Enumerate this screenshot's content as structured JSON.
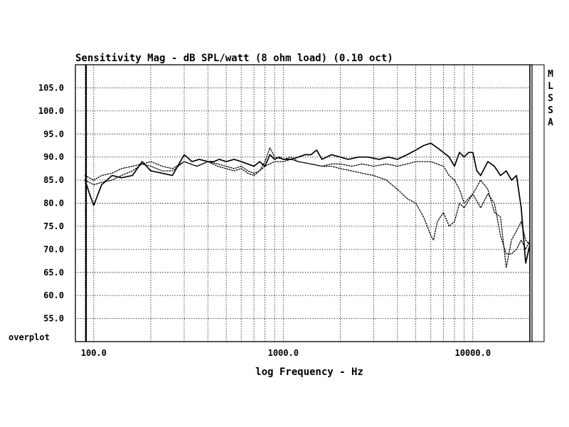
{
  "chart_data": {
    "type": "line",
    "title": "Sensitivity Mag - dB SPL/watt (8 ohm load) (0.10 oct)",
    "xlabel": "log Frequency - Hz",
    "ylabel": "",
    "xscale": "log",
    "xlim": [
      80,
      20000
    ],
    "ylim": [
      50,
      110
    ],
    "x_ticks": [
      100,
      1000,
      10000
    ],
    "x_tick_labels": [
      "100.0",
      "1000.0",
      "10000.0"
    ],
    "y_ticks": [
      55,
      60,
      65,
      70,
      75,
      80,
      85,
      90,
      95,
      100,
      105
    ],
    "y_tick_labels": [
      "55.0",
      "60.0",
      "65.0",
      "70.0",
      "75.0",
      "80.0",
      "85.0",
      "90.0",
      "95.0",
      "100.0",
      "105.0"
    ],
    "grid": true,
    "left_label": "overplot",
    "side_letters": [
      "M",
      "L",
      "S",
      "S",
      "A"
    ],
    "series": [
      {
        "style": "solid",
        "x": [
          90,
          95,
          100,
          110,
          125,
          140,
          160,
          180,
          200,
          230,
          260,
          300,
          330,
          360,
          400,
          430,
          460,
          500,
          550,
          600,
          650,
          700,
          750,
          800,
          850,
          900,
          950,
          1000,
          1100,
          1200,
          1300,
          1400,
          1500,
          1600,
          1800,
          2000,
          2200,
          2500,
          2800,
          3200,
          3600,
          4000,
          4500,
          5000,
          5500,
          6000,
          6500,
          7000,
          7500,
          8000,
          8500,
          9000,
          9500,
          10000,
          10500,
          11000,
          12000,
          13000,
          14000,
          15000,
          16000,
          17000,
          18000,
          19000,
          20000
        ],
        "y": [
          85,
          82,
          79.5,
          84,
          86,
          85.5,
          86,
          89,
          87,
          86.5,
          86,
          90.5,
          89,
          89.5,
          89,
          89,
          89.5,
          89,
          89.5,
          89,
          88.5,
          88,
          89,
          88,
          90.5,
          89.5,
          90,
          89.5,
          89.5,
          90,
          90.5,
          90.5,
          91.5,
          89.5,
          90.5,
          90,
          89.5,
          90,
          90,
          89.5,
          90,
          89.5,
          90.5,
          91.5,
          92.5,
          93,
          92,
          91,
          90,
          88,
          91,
          90,
          91,
          91,
          87,
          86,
          89,
          88,
          86,
          87,
          85,
          86,
          79,
          67,
          71
        ]
      },
      {
        "style": "dotted",
        "x": [
          90,
          100,
          110,
          125,
          140,
          160,
          180,
          200,
          230,
          260,
          300,
          350,
          400,
          450,
          500,
          550,
          600,
          650,
          700,
          750,
          800,
          900,
          1000,
          1100,
          1200,
          1400,
          1600,
          1800,
          2000,
          2300,
          2600,
          3000,
          3500,
          4000,
          4500,
          5000,
          5500,
          6000,
          6200,
          6500,
          7000,
          7500,
          8000,
          8500,
          9000,
          10000,
          11000,
          12000,
          13000,
          14000,
          15000,
          16000,
          17000,
          18000,
          19000,
          20000
        ],
        "y": [
          86,
          85,
          86,
          86.5,
          87.5,
          88,
          88.5,
          88,
          87,
          87,
          89,
          88,
          89,
          88.5,
          88,
          87.5,
          88,
          87,
          86.5,
          87,
          88,
          89,
          89,
          89.5,
          89,
          88.5,
          88,
          88,
          87.5,
          87,
          86.5,
          86,
          85,
          83,
          81,
          80,
          77,
          73,
          72,
          76,
          78,
          75,
          76,
          80,
          79,
          82,
          79,
          82,
          80,
          73,
          69,
          69,
          70,
          72,
          70,
          72
        ]
      },
      {
        "style": "dotted",
        "x": [
          90,
          100,
          110,
          125,
          140,
          160,
          180,
          200,
          230,
          260,
          300,
          350,
          400,
          450,
          500,
          550,
          600,
          650,
          700,
          750,
          800,
          850,
          900,
          1000,
          1100,
          1200,
          1400,
          1600,
          1800,
          2000,
          2300,
          2600,
          3000,
          3500,
          4000,
          4500,
          5000,
          5500,
          6000,
          6500,
          7000,
          7500,
          8000,
          8500,
          9000,
          10000,
          11000,
          12000,
          13000,
          14000,
          15000,
          16000,
          17000,
          18000,
          19000,
          20000
        ],
        "y": [
          85,
          84,
          84.5,
          85,
          86,
          87,
          88.5,
          89,
          88,
          87.5,
          89,
          88,
          89,
          88,
          87.5,
          87,
          87.5,
          86.5,
          86,
          87,
          89,
          92,
          90,
          89.5,
          90,
          89,
          88.5,
          88,
          88.5,
          88.5,
          88,
          88.5,
          88,
          88.5,
          88,
          88.5,
          89,
          89,
          89,
          88.5,
          88,
          86,
          85,
          83,
          80,
          82,
          85,
          83,
          78,
          77,
          66,
          72,
          74,
          76,
          72,
          71
        ]
      }
    ]
  }
}
